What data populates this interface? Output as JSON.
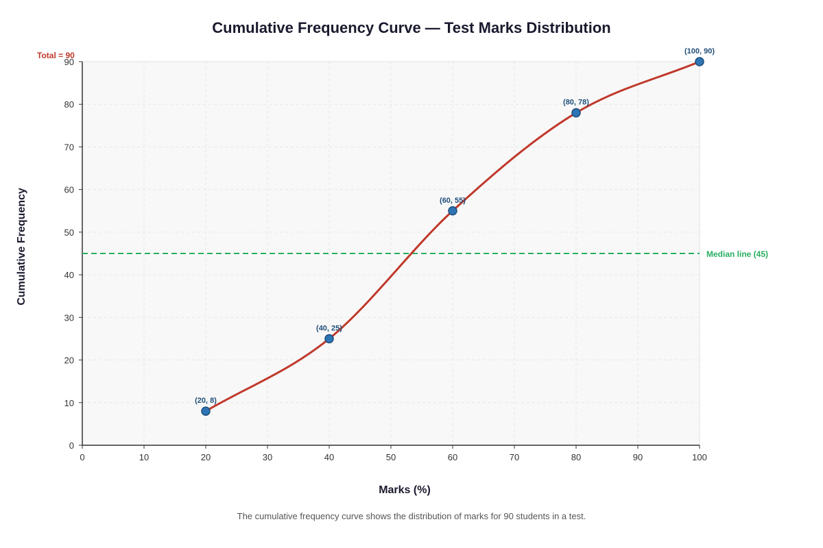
{
  "title": "Cumulative Frequency Curve — Test Marks Distribution",
  "caption": "The cumulative frequency curve shows the distribution of marks for 90 students in a test.",
  "chart_data": {
    "type": "line",
    "title": "Cumulative Frequency Curve — Test Marks Distribution",
    "xlabel": "Marks (%)",
    "ylabel": "Cumulative Frequency",
    "xlim": [
      0,
      100
    ],
    "ylim": [
      0,
      90
    ],
    "xticks": [
      0,
      10,
      20,
      30,
      40,
      50,
      60,
      70,
      80,
      90,
      100
    ],
    "yticks": [
      0,
      10,
      20,
      30,
      40,
      50,
      60,
      70,
      80,
      90
    ],
    "grid": true,
    "series": [
      {
        "color": "#c0392b",
        "x": [
          20,
          40,
          60,
          80,
          100
        ],
        "y": [
          8,
          25,
          55,
          78,
          90
        ],
        "point_labels": [
          "(20, 8)",
          "(40, 25)",
          "(60, 55)",
          "(80, 78)",
          "(100, 90)"
        ],
        "marker_color": "#2e75b6"
      }
    ],
    "annotations": {
      "median_line": {
        "y": 45,
        "label": "Median line (45)",
        "color": "#27ae60"
      },
      "total": {
        "label": "Total = 90",
        "color": "#c0392b"
      }
    }
  }
}
